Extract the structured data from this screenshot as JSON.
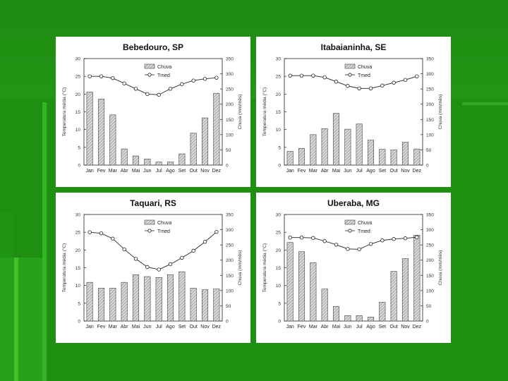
{
  "chart_data": [
    {
      "type": "bar",
      "title": "Bebedouro, SP",
      "categories": [
        "Jan",
        "Fev",
        "Mar",
        "Abr",
        "Mai",
        "Jun",
        "Jul",
        "Ago",
        "Set",
        "Out",
        "Nov",
        "Dez"
      ],
      "ylabel": "Temperatura média (°C)",
      "y2label": "Chuva (mm/mês)",
      "ylim": [
        0,
        30
      ],
      "y2lim": [
        0,
        350
      ],
      "yticks": [
        "0",
        "5",
        "10",
        "15",
        "20",
        "25",
        "30"
      ],
      "y2ticks": [
        "0",
        "50",
        "100",
        "150",
        "200",
        "250",
        "300",
        "350"
      ],
      "legend_position": "top-center",
      "series": [
        {
          "name": "Chuva",
          "kind": "bar",
          "axis": "right",
          "values": [
            240,
            217,
            165,
            53,
            30,
            20,
            10,
            10,
            37,
            105,
            155,
            236
          ]
        },
        {
          "name": "Tmed",
          "kind": "line",
          "axis": "left",
          "values": [
            25,
            25,
            24.5,
            23,
            21.5,
            20,
            19.8,
            21.5,
            22.8,
            23.8,
            24.3,
            24.6
          ]
        }
      ]
    },
    {
      "type": "bar",
      "title": "Itabaianinha, SE",
      "categories": [
        "Jan",
        "Fev",
        "Mar",
        "Abr",
        "Mai",
        "Jun",
        "Jul",
        "Ago",
        "Set",
        "Out",
        "Nov",
        "Dez"
      ],
      "ylabel": "Temperatura média (°C)",
      "y2label": "Chuva (mm/mês)",
      "ylim": [
        0,
        30
      ],
      "y2lim": [
        0,
        350
      ],
      "yticks": [
        "0",
        "5",
        "10",
        "15",
        "20",
        "25",
        "30"
      ],
      "y2ticks": [
        "0",
        "50",
        "100",
        "150",
        "200",
        "250",
        "300",
        "350"
      ],
      "legend_position": "top-center",
      "series": [
        {
          "name": "Chuva",
          "kind": "bar",
          "axis": "right",
          "values": [
            45,
            55,
            100,
            120,
            170,
            118,
            135,
            82,
            52,
            50,
            75,
            53
          ]
        },
        {
          "name": "Tmed",
          "kind": "line",
          "axis": "left",
          "values": [
            25.2,
            25.2,
            25.2,
            24.7,
            23.5,
            22.3,
            21.6,
            21.6,
            22.4,
            23.2,
            24,
            25
          ]
        }
      ]
    },
    {
      "type": "bar",
      "title": "Taquari, RS",
      "categories": [
        "Jan",
        "Fev",
        "Mar",
        "Abr",
        "Mai",
        "Jun",
        "Jul",
        "Ago",
        "Set",
        "Out",
        "Nov",
        "Dez"
      ],
      "ylabel": "Temperatura média (°C)",
      "y2label": "Chuva (mm/mês)",
      "ylim": [
        0,
        30
      ],
      "y2lim": [
        0,
        350
      ],
      "yticks": [
        "0",
        "5",
        "10",
        "15",
        "20",
        "25",
        "30"
      ],
      "y2ticks": [
        "0",
        "50",
        "100",
        "150",
        "200",
        "250",
        "300",
        "350"
      ],
      "legend_position": "top-center",
      "series": [
        {
          "name": "Chuva",
          "kind": "bar",
          "axis": "right",
          "values": [
            127,
            108,
            108,
            127,
            152,
            146,
            143,
            152,
            162,
            108,
            103,
            105
          ]
        },
        {
          "name": "Tmed",
          "kind": "line",
          "axis": "left",
          "values": [
            25,
            24.7,
            23.2,
            20.2,
            17.5,
            15.2,
            14.5,
            16,
            17.8,
            19.8,
            22.3,
            25.1
          ]
        }
      ]
    },
    {
      "type": "bar",
      "title": "Uberaba, MG",
      "categories": [
        "Jan",
        "Fev",
        "Mar",
        "Abr",
        "Mai",
        "Jun",
        "Jul",
        "Ago",
        "Set",
        "Out",
        "Nov",
        "Dez"
      ],
      "ylabel": "Temperatura média (°C)",
      "y2label": "Chuva (mm/mês)",
      "ylim": [
        0,
        30
      ],
      "y2lim": [
        0,
        350
      ],
      "yticks": [
        "0",
        "5",
        "10",
        "15",
        "20",
        "25",
        "30"
      ],
      "y2ticks": [
        "0",
        "50",
        "100",
        "150",
        "200",
        "250",
        "300",
        "350"
      ],
      "legend_position": "top-center",
      "series": [
        {
          "name": "Chuva",
          "kind": "bar",
          "axis": "right",
          "values": [
            258,
            228,
            192,
            105,
            48,
            18,
            18,
            13,
            62,
            163,
            205,
            282
          ]
        },
        {
          "name": "Tmed",
          "kind": "line",
          "axis": "left",
          "values": [
            23.5,
            23.5,
            23.4,
            22.5,
            21.5,
            20.3,
            20.2,
            21.7,
            22.7,
            23.1,
            23.3,
            23.6
          ]
        }
      ]
    }
  ]
}
